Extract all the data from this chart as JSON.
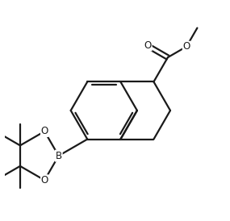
{
  "bg_color": "#ffffff",
  "line_color": "#1a1a1a",
  "line_width": 1.6,
  "figsize": [
    2.85,
    2.74
  ],
  "dpi": 100,
  "xlim": [
    -4.5,
    5.5
  ],
  "ylim": [
    -5.5,
    4.5
  ]
}
